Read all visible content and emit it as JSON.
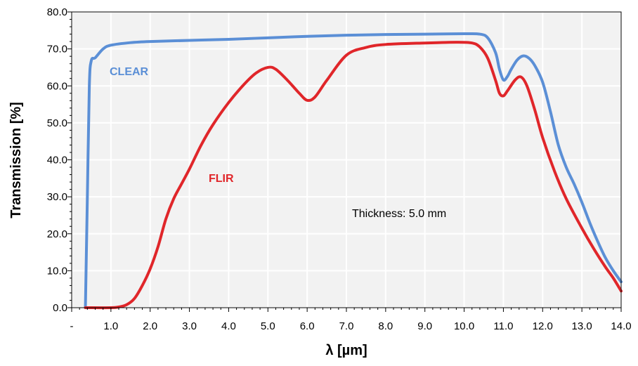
{
  "chart_data": {
    "type": "line",
    "title": "",
    "xlabel": "λ [µm]",
    "ylabel": "Transmission [%]",
    "xlim": [
      0,
      14
    ],
    "ylim": [
      0,
      80
    ],
    "x_ticks": [
      "-",
      "1.0",
      "2.0",
      "3.0",
      "4.0",
      "5.0",
      "6.0",
      "7.0",
      "8.0",
      "9.0",
      "10.0",
      "11.0",
      "12.0",
      "13.0",
      "14.0"
    ],
    "y_ticks": [
      "0.0",
      "10.0",
      "20.0",
      "30.0",
      "40.0",
      "50.0",
      "60.0",
      "70.0",
      "80.0"
    ],
    "grid": true,
    "legend": "none",
    "annotation": "Thickness: 5.0 mm",
    "series": [
      {
        "name": "CLEAR",
        "color": "#5B8FD6",
        "points": [
          [
            0.35,
            0
          ],
          [
            0.4,
            30
          ],
          [
            0.45,
            60
          ],
          [
            0.5,
            66.8
          ],
          [
            0.6,
            67.6
          ],
          [
            0.8,
            70
          ],
          [
            1.0,
            71
          ],
          [
            1.5,
            71.7
          ],
          [
            2.0,
            72
          ],
          [
            3.0,
            72.3
          ],
          [
            4.0,
            72.6
          ],
          [
            5.0,
            73
          ],
          [
            6.0,
            73.4
          ],
          [
            7.0,
            73.7
          ],
          [
            8.0,
            73.9
          ],
          [
            9.0,
            74
          ],
          [
            10.0,
            74.1
          ],
          [
            10.4,
            74
          ],
          [
            10.6,
            73
          ],
          [
            10.8,
            69
          ],
          [
            10.9,
            64.5
          ],
          [
            11.0,
            61.6
          ],
          [
            11.1,
            62.5
          ],
          [
            11.2,
            64.5
          ],
          [
            11.35,
            67
          ],
          [
            11.5,
            68.1
          ],
          [
            11.65,
            67.5
          ],
          [
            11.8,
            65.5
          ],
          [
            12.0,
            61
          ],
          [
            12.2,
            53
          ],
          [
            12.4,
            44
          ],
          [
            12.6,
            38
          ],
          [
            12.8,
            33.5
          ],
          [
            13.0,
            28.5
          ],
          [
            13.2,
            23
          ],
          [
            13.4,
            18
          ],
          [
            13.6,
            13.5
          ],
          [
            13.8,
            10
          ],
          [
            14.0,
            7
          ]
        ]
      },
      {
        "name": "FLIR",
        "color": "#E0262A",
        "points": [
          [
            0.35,
            0
          ],
          [
            1.0,
            0
          ],
          [
            1.2,
            0.2
          ],
          [
            1.4,
            0.8
          ],
          [
            1.6,
            2.5
          ],
          [
            1.8,
            6
          ],
          [
            2.0,
            10.5
          ],
          [
            2.2,
            16.5
          ],
          [
            2.4,
            24
          ],
          [
            2.6,
            29.5
          ],
          [
            2.8,
            33.5
          ],
          [
            3.0,
            37.5
          ],
          [
            3.3,
            44
          ],
          [
            3.6,
            49.5
          ],
          [
            4.0,
            55.5
          ],
          [
            4.4,
            60.5
          ],
          [
            4.7,
            63.5
          ],
          [
            5.0,
            65
          ],
          [
            5.2,
            64.5
          ],
          [
            5.5,
            61.5
          ],
          [
            5.8,
            58
          ],
          [
            6.0,
            56.1
          ],
          [
            6.2,
            57
          ],
          [
            6.5,
            61.5
          ],
          [
            7.0,
            68.3
          ],
          [
            7.5,
            70.4
          ],
          [
            8.0,
            71.2
          ],
          [
            9.0,
            71.6
          ],
          [
            9.8,
            71.8
          ],
          [
            10.2,
            71.6
          ],
          [
            10.4,
            70.5
          ],
          [
            10.6,
            67.5
          ],
          [
            10.8,
            61.5
          ],
          [
            10.9,
            58
          ],
          [
            11.0,
            57.3
          ],
          [
            11.1,
            58.6
          ],
          [
            11.3,
            61.6
          ],
          [
            11.45,
            62.4
          ],
          [
            11.6,
            60
          ],
          [
            11.8,
            53.5
          ],
          [
            12.0,
            46
          ],
          [
            12.3,
            37
          ],
          [
            12.6,
            29.5
          ],
          [
            13.0,
            21.5
          ],
          [
            13.3,
            16
          ],
          [
            13.6,
            11
          ],
          [
            13.8,
            8
          ],
          [
            14.0,
            4.5
          ]
        ]
      }
    ]
  }
}
